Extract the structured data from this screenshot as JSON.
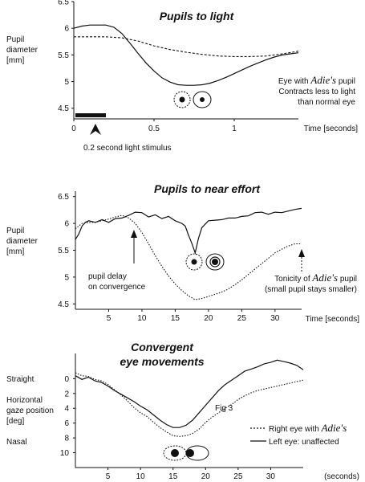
{
  "chart_data": [
    {
      "type": "line",
      "title": "Pupils to light",
      "ylabel": [
        "Pupil",
        "diameter",
        "[mm]"
      ],
      "xlabel": "Time [seconds]",
      "xlim": [
        0,
        1.4
      ],
      "ylim": [
        4.3,
        6.5
      ],
      "xticks": [
        0,
        0.5,
        1
      ],
      "yticks": [
        4.5,
        5,
        5.5,
        6,
        6.5
      ],
      "xtick_labels": [
        "0",
        "0.5",
        "1"
      ],
      "ytick_labels": [
        "4.5",
        "5",
        "5.5",
        "6",
        "6.5"
      ],
      "stimulus": {
        "start": 0,
        "end": 0.2,
        "label": "0.2 second light stimulus"
      },
      "annotation": {
        "lines": [
          "Eye with",
          "Adie's",
          "pupil",
          "Contracts less to light",
          "than normal eye"
        ]
      },
      "series": [
        {
          "style": "solid",
          "x": [
            0,
            0.05,
            0.1,
            0.15,
            0.2,
            0.25,
            0.3,
            0.35,
            0.4,
            0.45,
            0.5,
            0.55,
            0.6,
            0.65,
            0.7,
            0.75,
            0.8,
            0.85,
            0.9,
            0.95,
            1.0,
            1.05,
            1.1,
            1.15,
            1.2,
            1.25,
            1.3,
            1.35,
            1.4
          ],
          "y": [
            6.0,
            6.04,
            6.06,
            6.06,
            6.06,
            6.02,
            5.9,
            5.72,
            5.53,
            5.35,
            5.2,
            5.07,
            4.99,
            4.94,
            4.93,
            4.93,
            4.94,
            4.97,
            5.02,
            5.08,
            5.15,
            5.22,
            5.29,
            5.35,
            5.41,
            5.46,
            5.5,
            5.52,
            5.54
          ]
        },
        {
          "style": "dashed",
          "x": [
            0,
            0.1,
            0.2,
            0.3,
            0.4,
            0.5,
            0.6,
            0.7,
            0.8,
            0.9,
            1.0,
            1.1,
            1.2,
            1.3,
            1.4
          ],
          "y": [
            5.84,
            5.84,
            5.84,
            5.82,
            5.76,
            5.67,
            5.6,
            5.55,
            5.51,
            5.48,
            5.47,
            5.47,
            5.48,
            5.52,
            5.57
          ]
        }
      ]
    },
    {
      "type": "line",
      "title": "Pupils to near effort",
      "ylabel": [
        "Pupil",
        "diameter",
        "[mm]"
      ],
      "xlabel": "Time [seconds]",
      "xlim": [
        0,
        34
      ],
      "ylim": [
        4.4,
        6.6
      ],
      "xticks": [
        5,
        10,
        15,
        20,
        25,
        30
      ],
      "yticks": [
        4.5,
        5,
        5.5,
        6,
        6.5
      ],
      "xtick_labels": [
        "5",
        "10",
        "15",
        "20",
        "25",
        "30"
      ],
      "ytick_labels": [
        "4.5",
        "5",
        "5.5",
        "6",
        "6.5"
      ],
      "annotations": {
        "delay": [
          "pupil delay",
          "on convergence"
        ],
        "tonicity": [
          "Tonicity of",
          "Adie's",
          "pupil",
          "(small pupil stays smaller)"
        ]
      },
      "series": [
        {
          "style": "solid",
          "x": [
            0,
            0.5,
            1,
            1.5,
            2,
            3,
            4,
            5,
            6,
            7,
            8,
            9,
            10,
            11,
            12,
            13,
            14,
            15,
            16,
            16.5,
            17,
            17.5,
            18,
            18.5,
            19,
            20,
            21,
            22,
            23,
            24,
            25,
            26,
            27,
            28,
            29,
            30,
            31,
            32,
            33,
            34
          ],
          "y": [
            5.7,
            5.8,
            5.95,
            6.02,
            6.05,
            6.02,
            6.07,
            6.02,
            6.09,
            6.1,
            6.15,
            6.21,
            6.2,
            6.12,
            6.16,
            6.09,
            6.13,
            6.05,
            6.0,
            5.95,
            5.78,
            5.63,
            5.45,
            5.72,
            5.92,
            6.05,
            6.06,
            6.07,
            6.1,
            6.1,
            6.13,
            6.14,
            6.2,
            6.21,
            6.17,
            6.21,
            6.2,
            6.23,
            6.26,
            6.28
          ]
        },
        {
          "style": "dotted",
          "x": [
            0,
            1,
            2,
            3,
            4,
            5,
            6,
            7,
            8,
            9,
            10,
            11,
            12,
            13,
            14,
            15,
            16,
            17,
            18,
            19,
            20,
            21,
            22,
            23,
            24,
            25,
            26,
            27,
            28,
            29,
            30,
            31,
            32,
            33,
            34
          ],
          "y": [
            5.9,
            6.0,
            6.02,
            6.02,
            6.05,
            6.08,
            6.12,
            6.15,
            6.1,
            6.0,
            5.83,
            5.62,
            5.4,
            5.2,
            5.02,
            4.87,
            4.75,
            4.65,
            4.58,
            4.6,
            4.64,
            4.68,
            4.72,
            4.78,
            4.86,
            4.95,
            5.05,
            5.15,
            5.25,
            5.35,
            5.45,
            5.52,
            5.58,
            5.62,
            5.62
          ]
        }
      ]
    },
    {
      "type": "line",
      "title": [
        "Convergent",
        "eye movements"
      ],
      "xlabel": "(seconds)",
      "xlim": [
        0,
        35
      ],
      "ylim": [
        -3.4,
        12
      ],
      "xticks": [
        5,
        10,
        15,
        20,
        25,
        30
      ],
      "yticks": [
        0,
        2,
        4,
        6,
        8,
        10
      ],
      "xtick_labels": [
        "5",
        "10",
        "15",
        "20",
        "25",
        "30"
      ],
      "ytick_labels": [
        "0",
        "2",
        "4",
        "6",
        "8",
        "10"
      ],
      "side_labels": {
        "top": "Straight",
        "middle": [
          "Horizontal",
          "gaze position",
          "[deg]"
        ],
        "bottom": "Nasal"
      },
      "fig_label": "Fig 3",
      "legend": {
        "position": "bottom-right",
        "items": [
          {
            "style": "dotted",
            "label": "Right eye with",
            "label_script": "Adie's"
          },
          {
            "style": "solid",
            "label": "Left eye: unaffected",
            "label_script": ""
          }
        ]
      },
      "series": [
        {
          "style": "dotted",
          "x": [
            0,
            1,
            2,
            3,
            4,
            5,
            6,
            7,
            8,
            9,
            10,
            11,
            12,
            13,
            14,
            15,
            16,
            17,
            18,
            19,
            20,
            21,
            22,
            23,
            24,
            25,
            26,
            27,
            28,
            29,
            30,
            31,
            32,
            33,
            34,
            35
          ],
          "y": [
            -0.8,
            -0.4,
            -0.3,
            0.1,
            0.3,
            0.8,
            1.5,
            2.2,
            3.0,
            3.9,
            4.6,
            5.1,
            5.9,
            6.6,
            7.2,
            7.7,
            7.8,
            7.7,
            7.4,
            6.8,
            5.9,
            5.2,
            4.6,
            4.0,
            3.5,
            2.8,
            2.3,
            1.9,
            1.6,
            1.4,
            1.2,
            1.0,
            0.8,
            0.6,
            0.4,
            0.2
          ]
        },
        {
          "style": "solid",
          "x": [
            0,
            1,
            2,
            3,
            4,
            5,
            6,
            7,
            8,
            9,
            10,
            11,
            12,
            13,
            14,
            15,
            16,
            17,
            18,
            19,
            20,
            21,
            22,
            23,
            24,
            25,
            26,
            27,
            28,
            29,
            30,
            31,
            32,
            33,
            34,
            35
          ],
          "y": [
            -0.4,
            0.1,
            -0.2,
            0.3,
            0.5,
            1.0,
            1.6,
            2.1,
            2.6,
            3.1,
            3.7,
            4.2,
            4.9,
            5.6,
            6.2,
            6.6,
            6.6,
            6.3,
            5.6,
            4.6,
            3.6,
            2.6,
            1.6,
            0.8,
            0.2,
            -0.4,
            -1.0,
            -1.3,
            -1.6,
            -2.0,
            -2.2,
            -2.5,
            -2.3,
            -2.1,
            -1.8,
            -1.2
          ]
        }
      ]
    }
  ]
}
